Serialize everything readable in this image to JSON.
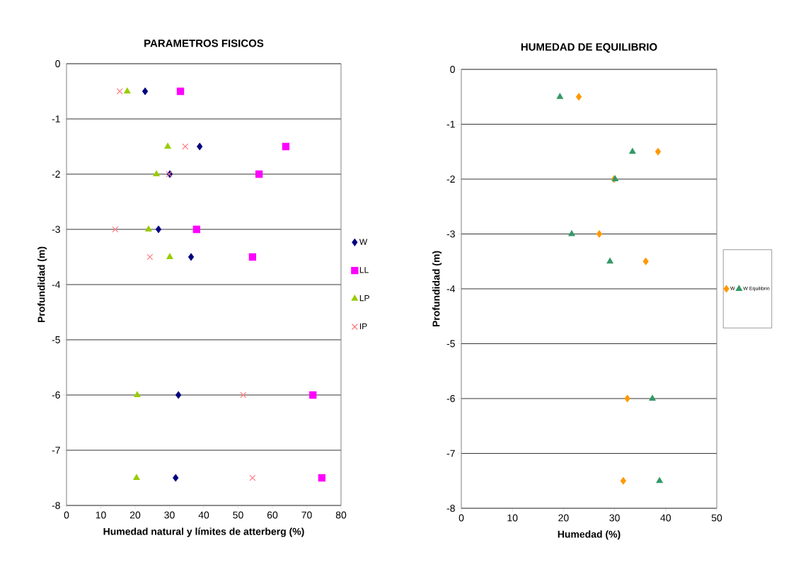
{
  "chart_data": [
    {
      "type": "scatter",
      "title": "PARAMETROS FISICOS",
      "xlabel": "Humedad natural y límites de atterberg (%)",
      "ylabel": "Profundidad (m)",
      "xlim": [
        0,
        80
      ],
      "xticks": [
        0,
        10,
        20,
        30,
        40,
        50,
        60,
        70,
        80
      ],
      "ylim": [
        -8,
        0
      ],
      "yticks": [
        -8,
        -7,
        -6,
        -5,
        -4,
        -3,
        -2,
        -1,
        0
      ],
      "grid": "y",
      "legend": "right",
      "series": [
        {
          "name": "W",
          "color": "#000080",
          "marker": "diamond",
          "x": [
            22.9,
            38.8,
            30.1,
            26.8,
            36.3,
            32.6,
            31.8
          ],
          "values": [
            -0.5,
            -1.5,
            -2,
            -3,
            -3.5,
            -6,
            -7.5
          ]
        },
        {
          "name": "LL",
          "color": "#ff00ff",
          "marker": "square",
          "x": [
            33.2,
            63.9,
            56.1,
            37.9,
            54.2,
            71.8,
            74.4
          ],
          "values": [
            -0.5,
            -1.5,
            -2,
            -3,
            -3.5,
            -6,
            -7.5
          ]
        },
        {
          "name": "LP",
          "color": "#99cc00",
          "marker": "triangle",
          "x": [
            17.7,
            29.5,
            26.2,
            23.9,
            30.1,
            20.6,
            20.4
          ],
          "values": [
            -0.5,
            -1.5,
            -2,
            -3,
            -3.5,
            -6,
            -7.5
          ]
        },
        {
          "name": "IP",
          "color": "#ff7c80",
          "marker": "cross",
          "x": [
            15.5,
            34.6,
            29.9,
            14.2,
            24.3,
            51.5,
            54.2
          ],
          "values": [
            -0.5,
            -1.5,
            -2,
            -3,
            -3.5,
            -6,
            -7.5
          ]
        }
      ]
    },
    {
      "type": "scatter",
      "title": "HUMEDAD DE EQUILIBRIO",
      "xlabel": "Humedad  (%)",
      "ylabel": "Profundidad (m)",
      "xlim": [
        0,
        50
      ],
      "xticks": [
        0,
        10,
        20,
        30,
        40,
        50
      ],
      "ylim": [
        -8,
        0
      ],
      "yticks": [
        -8,
        -7,
        -6,
        -5,
        -4,
        -3,
        -2,
        -1,
        0
      ],
      "grid": "y",
      "legend": "right",
      "series": [
        {
          "name": "W",
          "color": "#ff9900",
          "marker": "diamond",
          "x": [
            23.0,
            38.5,
            29.9,
            27.0,
            36.1,
            32.5,
            31.7
          ],
          "values": [
            -0.5,
            -1.5,
            -2,
            -3,
            -3.5,
            -6,
            -7.5
          ]
        },
        {
          "name": "W Equilibrio",
          "color": "#339966",
          "marker": "triangle",
          "x": [
            19.3,
            33.5,
            30.1,
            21.6,
            29.1,
            37.4,
            38.8
          ],
          "values": [
            -0.5,
            -1.5,
            -2,
            -3,
            -3.5,
            -6,
            -7.5
          ]
        }
      ]
    }
  ]
}
